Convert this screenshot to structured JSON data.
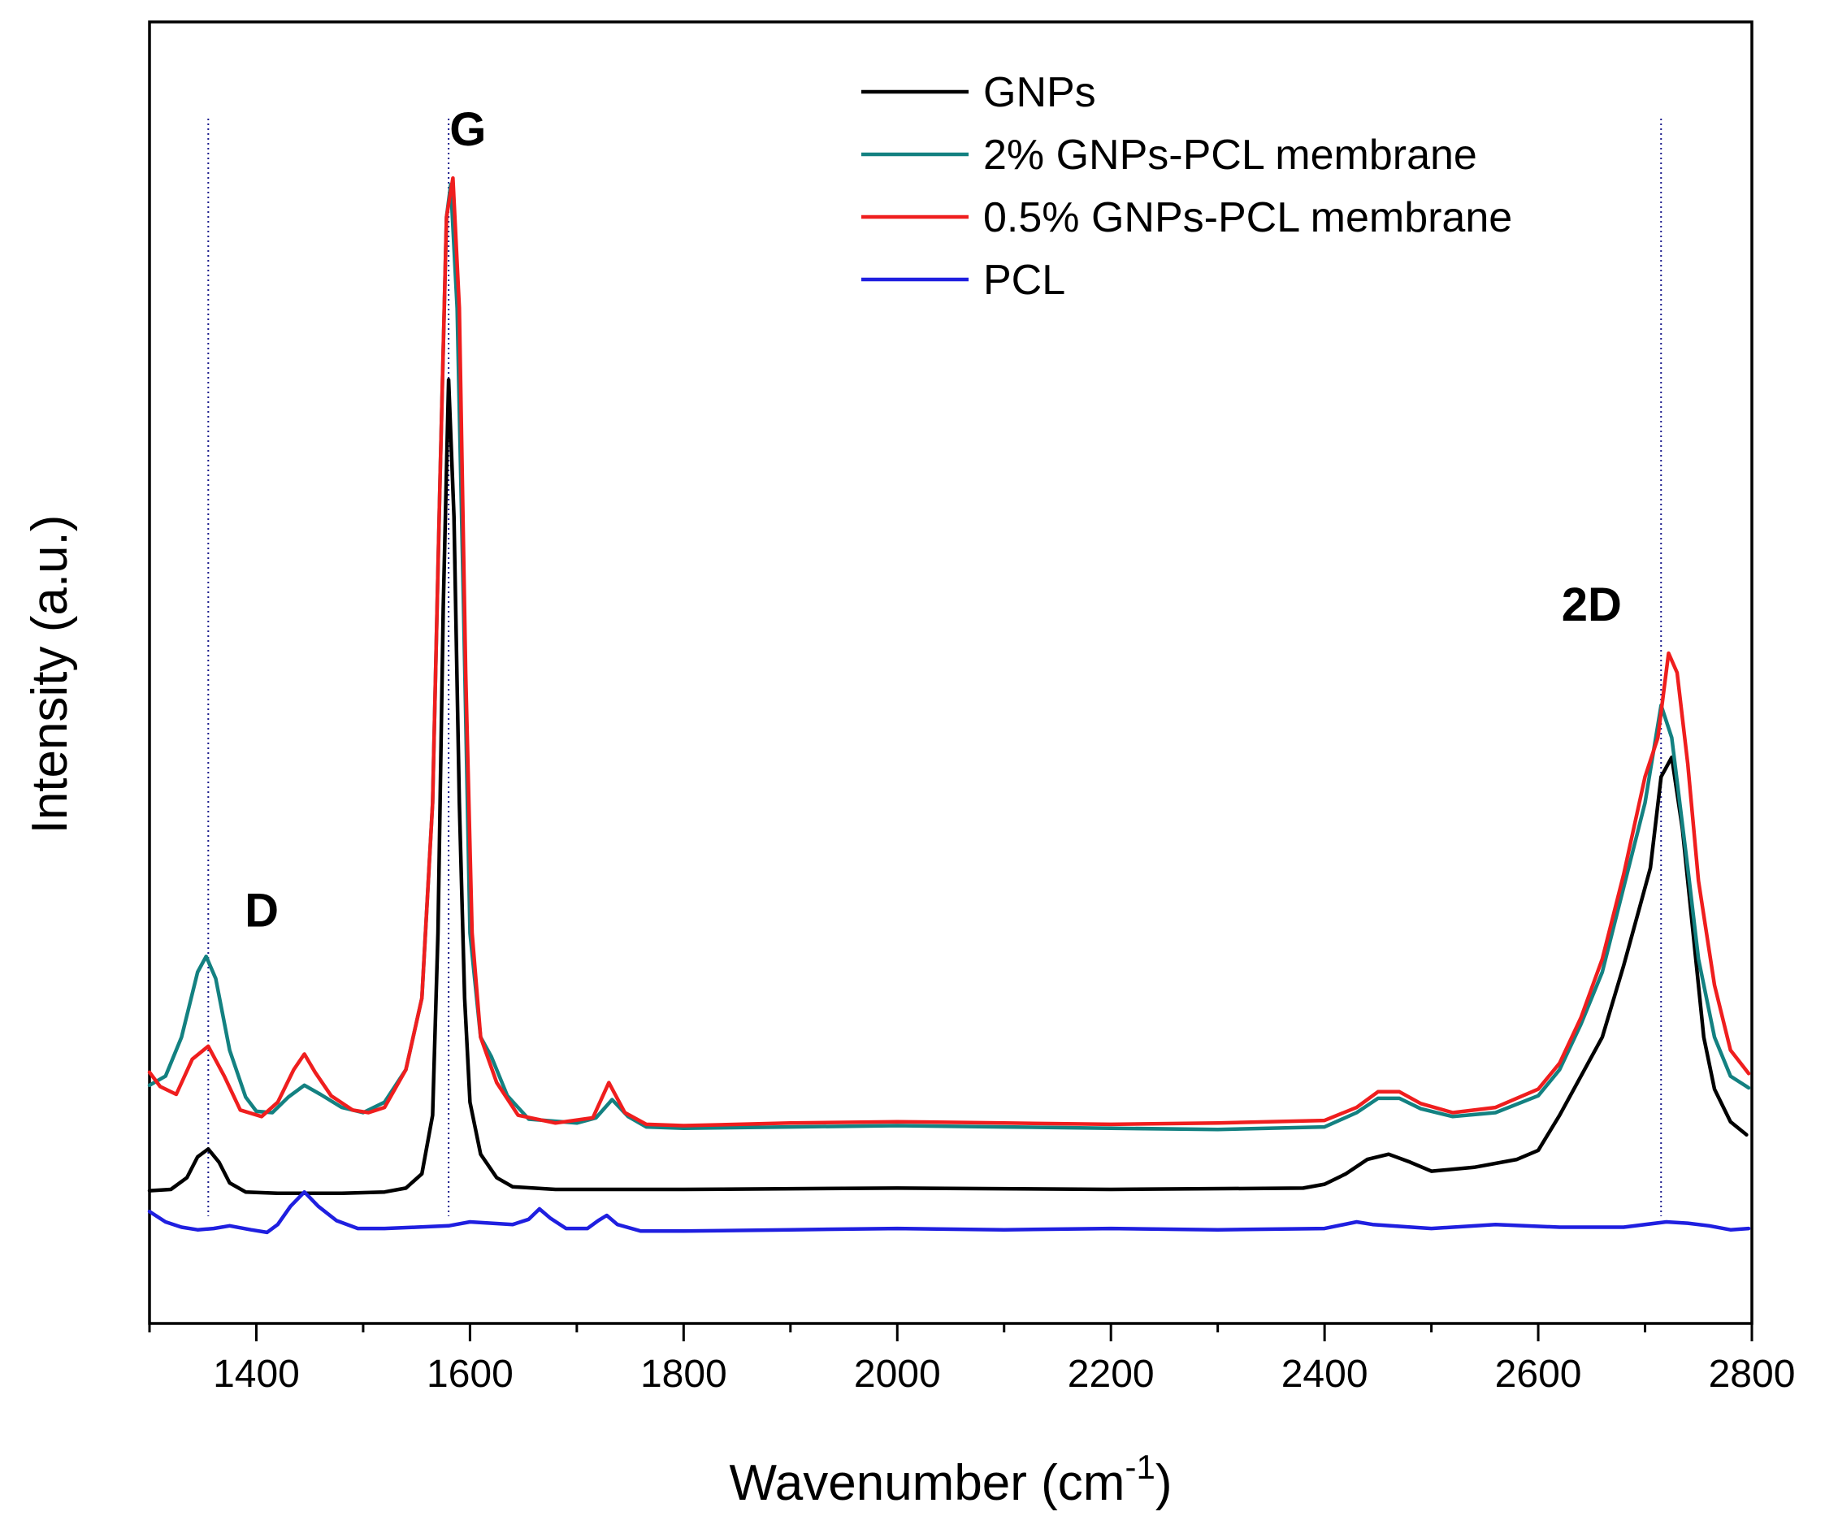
{
  "chart_data": {
    "type": "line",
    "xlabel": "Wavenumber (cm",
    "xlabel_sup": "-1",
    "xlabel_close": ")",
    "ylabel": "Intensity (a.u.)",
    "xlim": [
      1300,
      2800
    ],
    "ylim": [
      0,
      100
    ],
    "x_ticks": [
      1400,
      1600,
      1800,
      2000,
      2200,
      2400,
      2600,
      2800
    ],
    "x_tick_labels": [
      "1400",
      "1600",
      "1800",
      "2000",
      "2200",
      "2400",
      "2600",
      "2800"
    ],
    "y_ticks_shown": false,
    "legend_position": "top-right",
    "reference_lines": [
      1355,
      1580,
      2715
    ],
    "peak_labels": [
      {
        "text": "D",
        "x": 1405,
        "y": 30.5
      },
      {
        "text": "G",
        "x": 1598,
        "y": 90.5
      },
      {
        "text": "2D",
        "x": 2650,
        "y": 54
      }
    ],
    "series": [
      {
        "name": "GNPs",
        "color": "#000000",
        "points": [
          [
            1300,
            10.2
          ],
          [
            1320,
            10.3
          ],
          [
            1335,
            11.2
          ],
          [
            1345,
            12.8
          ],
          [
            1355,
            13.4
          ],
          [
            1365,
            12.4
          ],
          [
            1375,
            10.8
          ],
          [
            1390,
            10.1
          ],
          [
            1420,
            10.0
          ],
          [
            1480,
            10.0
          ],
          [
            1520,
            10.1
          ],
          [
            1540,
            10.4
          ],
          [
            1555,
            11.5
          ],
          [
            1565,
            16
          ],
          [
            1570,
            30
          ],
          [
            1575,
            55
          ],
          [
            1580,
            72.5
          ],
          [
            1585,
            62
          ],
          [
            1590,
            40
          ],
          [
            1595,
            25
          ],
          [
            1600,
            17
          ],
          [
            1610,
            13
          ],
          [
            1625,
            11.2
          ],
          [
            1640,
            10.5
          ],
          [
            1680,
            10.3
          ],
          [
            1800,
            10.3
          ],
          [
            2000,
            10.4
          ],
          [
            2200,
            10.3
          ],
          [
            2380,
            10.4
          ],
          [
            2400,
            10.7
          ],
          [
            2420,
            11.5
          ],
          [
            2440,
            12.6
          ],
          [
            2460,
            13
          ],
          [
            2480,
            12.4
          ],
          [
            2500,
            11.7
          ],
          [
            2540,
            12
          ],
          [
            2580,
            12.6
          ],
          [
            2600,
            13.3
          ],
          [
            2620,
            16
          ],
          [
            2640,
            19
          ],
          [
            2660,
            22
          ],
          [
            2680,
            27.5
          ],
          [
            2695,
            32
          ],
          [
            2705,
            35
          ],
          [
            2715,
            42
          ],
          [
            2725,
            43.5
          ],
          [
            2735,
            38
          ],
          [
            2745,
            30
          ],
          [
            2755,
            22
          ],
          [
            2765,
            18
          ],
          [
            2780,
            15.5
          ],
          [
            2795,
            14.5
          ]
        ]
      },
      {
        "name": "2% GNPs-PCL membrane",
        "color": "#138181",
        "points": [
          [
            1300,
            18.3
          ],
          [
            1315,
            19
          ],
          [
            1330,
            22
          ],
          [
            1345,
            27
          ],
          [
            1353,
            28.2
          ],
          [
            1362,
            26.5
          ],
          [
            1375,
            21
          ],
          [
            1390,
            17.4
          ],
          [
            1400,
            16.3
          ],
          [
            1415,
            16.2
          ],
          [
            1430,
            17.4
          ],
          [
            1445,
            18.3
          ],
          [
            1460,
            17.6
          ],
          [
            1480,
            16.6
          ],
          [
            1500,
            16.2
          ],
          [
            1520,
            17
          ],
          [
            1540,
            19.5
          ],
          [
            1555,
            25
          ],
          [
            1565,
            40
          ],
          [
            1572,
            65
          ],
          [
            1578,
            85
          ],
          [
            1582,
            87.5
          ],
          [
            1588,
            78
          ],
          [
            1594,
            55
          ],
          [
            1600,
            30
          ],
          [
            1610,
            22
          ],
          [
            1620,
            20.5
          ],
          [
            1635,
            17.5
          ],
          [
            1655,
            15.7
          ],
          [
            1700,
            15.4
          ],
          [
            1718,
            15.8
          ],
          [
            1733,
            17.2
          ],
          [
            1748,
            15.9
          ],
          [
            1765,
            15.1
          ],
          [
            1800,
            15.0
          ],
          [
            1900,
            15.1
          ],
          [
            2000,
            15.2
          ],
          [
            2100,
            15.1
          ],
          [
            2200,
            15.0
          ],
          [
            2300,
            14.9
          ],
          [
            2400,
            15.1
          ],
          [
            2430,
            16.2
          ],
          [
            2450,
            17.3
          ],
          [
            2470,
            17.3
          ],
          [
            2490,
            16.5
          ],
          [
            2520,
            15.9
          ],
          [
            2560,
            16.2
          ],
          [
            2600,
            17.5
          ],
          [
            2620,
            19.5
          ],
          [
            2640,
            23
          ],
          [
            2660,
            27
          ],
          [
            2680,
            33.5
          ],
          [
            2700,
            40
          ],
          [
            2715,
            47.5
          ],
          [
            2725,
            45
          ],
          [
            2740,
            35
          ],
          [
            2750,
            28
          ],
          [
            2765,
            22
          ],
          [
            2780,
            19
          ],
          [
            2797,
            18.1
          ]
        ]
      },
      {
        "name": "0.5% GNPs-PCL membrane",
        "color": "#ef1e1e",
        "points": [
          [
            1300,
            19.3
          ],
          [
            1310,
            18.2
          ],
          [
            1325,
            17.6
          ],
          [
            1340,
            20.3
          ],
          [
            1355,
            21.3
          ],
          [
            1370,
            19
          ],
          [
            1385,
            16.4
          ],
          [
            1405,
            15.9
          ],
          [
            1420,
            17
          ],
          [
            1435,
            19.5
          ],
          [
            1445,
            20.7
          ],
          [
            1455,
            19.3
          ],
          [
            1470,
            17.5
          ],
          [
            1490,
            16.4
          ],
          [
            1505,
            16.2
          ],
          [
            1520,
            16.6
          ],
          [
            1540,
            19.5
          ],
          [
            1555,
            25
          ],
          [
            1565,
            40
          ],
          [
            1572,
            65
          ],
          [
            1578,
            85
          ],
          [
            1584,
            88
          ],
          [
            1590,
            78
          ],
          [
            1596,
            50
          ],
          [
            1602,
            30
          ],
          [
            1610,
            22
          ],
          [
            1625,
            18.5
          ],
          [
            1645,
            16
          ],
          [
            1680,
            15.4
          ],
          [
            1715,
            15.8
          ],
          [
            1730,
            18.5
          ],
          [
            1745,
            16.2
          ],
          [
            1765,
            15.3
          ],
          [
            1800,
            15.2
          ],
          [
            1900,
            15.4
          ],
          [
            2000,
            15.5
          ],
          [
            2100,
            15.4
          ],
          [
            2200,
            15.3
          ],
          [
            2300,
            15.4
          ],
          [
            2400,
            15.6
          ],
          [
            2430,
            16.6
          ],
          [
            2450,
            17.8
          ],
          [
            2470,
            17.8
          ],
          [
            2490,
            16.9
          ],
          [
            2520,
            16.2
          ],
          [
            2560,
            16.6
          ],
          [
            2600,
            18
          ],
          [
            2620,
            20
          ],
          [
            2640,
            23.5
          ],
          [
            2660,
            28
          ],
          [
            2680,
            34.5
          ],
          [
            2700,
            42
          ],
          [
            2712,
            45
          ],
          [
            2722,
            51.5
          ],
          [
            2730,
            50
          ],
          [
            2740,
            43
          ],
          [
            2750,
            34
          ],
          [
            2765,
            26
          ],
          [
            2780,
            21
          ],
          [
            2797,
            19.2
          ]
        ]
      },
      {
        "name": "PCL",
        "color": "#1f1fe0",
        "points": [
          [
            1300,
            8.6
          ],
          [
            1315,
            7.8
          ],
          [
            1330,
            7.4
          ],
          [
            1345,
            7.2
          ],
          [
            1360,
            7.3
          ],
          [
            1375,
            7.5
          ],
          [
            1395,
            7.2
          ],
          [
            1410,
            7.0
          ],
          [
            1420,
            7.6
          ],
          [
            1432,
            9.0
          ],
          [
            1445,
            10.1
          ],
          [
            1458,
            9.0
          ],
          [
            1475,
            7.9
          ],
          [
            1495,
            7.3
          ],
          [
            1520,
            7.3
          ],
          [
            1550,
            7.4
          ],
          [
            1580,
            7.5
          ],
          [
            1600,
            7.8
          ],
          [
            1620,
            7.7
          ],
          [
            1640,
            7.6
          ],
          [
            1655,
            8.0
          ],
          [
            1665,
            8.8
          ],
          [
            1675,
            8.1
          ],
          [
            1690,
            7.3
          ],
          [
            1710,
            7.3
          ],
          [
            1720,
            7.9
          ],
          [
            1728,
            8.3
          ],
          [
            1738,
            7.6
          ],
          [
            1760,
            7.1
          ],
          [
            1800,
            7.1
          ],
          [
            1900,
            7.2
          ],
          [
            2000,
            7.3
          ],
          [
            2100,
            7.2
          ],
          [
            2200,
            7.3
          ],
          [
            2300,
            7.2
          ],
          [
            2400,
            7.3
          ],
          [
            2430,
            7.8
          ],
          [
            2445,
            7.6
          ],
          [
            2500,
            7.3
          ],
          [
            2560,
            7.6
          ],
          [
            2620,
            7.4
          ],
          [
            2680,
            7.4
          ],
          [
            2720,
            7.8
          ],
          [
            2740,
            7.7
          ],
          [
            2760,
            7.5
          ],
          [
            2780,
            7.2
          ],
          [
            2797,
            7.3
          ]
        ]
      }
    ]
  }
}
